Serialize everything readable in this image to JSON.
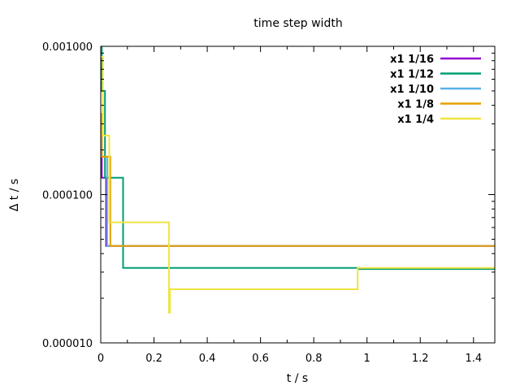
{
  "chart_data": {
    "type": "line",
    "title": "time step width",
    "xlabel": "t / s",
    "ylabel": "Δ t / s",
    "xlim": [
      0,
      1.48
    ],
    "ylim": [
      1e-05,
      0.001
    ],
    "y_scale": "log",
    "grid": false,
    "legend_position": "top-right",
    "x_ticks": [
      0,
      0.2,
      0.4,
      0.6,
      0.8,
      1,
      1.2,
      1.4
    ],
    "x_tick_labels": [
      "0",
      "0.2",
      "0.4",
      "0.6",
      "0.8",
      "1",
      "1.2",
      "1.4"
    ],
    "y_ticks": [
      1e-05,
      0.0001,
      0.001
    ],
    "y_tick_labels": [
      "0.000010",
      "0.000100",
      "0.001000"
    ],
    "series": [
      {
        "name": "x1 1/16",
        "color": "#9400d3",
        "points": [
          [
            0,
            0.00025
          ],
          [
            0.004,
            0.00025
          ],
          [
            0.004,
            0.00013
          ],
          [
            0.02,
            0.00013
          ],
          [
            0.02,
            4.5e-05
          ],
          [
            1.48,
            4.5e-05
          ]
        ]
      },
      {
        "name": "x1 1/12",
        "color": "#009e73",
        "points": [
          [
            0,
            0.001
          ],
          [
            0.004,
            0.001
          ],
          [
            0.004,
            0.0005
          ],
          [
            0.016,
            0.0005
          ],
          [
            0.016,
            0.00013
          ],
          [
            0.084,
            0.00013
          ],
          [
            0.084,
            3.2e-05
          ],
          [
            0.97,
            3.2e-05
          ],
          [
            0.97,
            3.15e-05
          ],
          [
            1.48,
            3.15e-05
          ]
        ]
      },
      {
        "name": "x1 1/10",
        "color": "#56b4e9",
        "points": [
          [
            0,
            0.00035
          ],
          [
            0.004,
            0.00035
          ],
          [
            0.004,
            0.00018
          ],
          [
            0.024,
            0.00018
          ],
          [
            0.024,
            4.5e-05
          ],
          [
            1.48,
            4.5e-05
          ]
        ]
      },
      {
        "name": "x1 1/8",
        "color": "#e69f00",
        "points": [
          [
            0,
            0.00035
          ],
          [
            0.004,
            0.00035
          ],
          [
            0.004,
            0.00018
          ],
          [
            0.036,
            0.00018
          ],
          [
            0.036,
            4.5e-05
          ],
          [
            1.48,
            4.5e-05
          ]
        ]
      },
      {
        "name": "x1 1/4",
        "color": "#f0e442",
        "points": [
          [
            0,
            0.00085
          ],
          [
            0.008,
            0.00085
          ],
          [
            0.008,
            0.00025
          ],
          [
            0.032,
            0.00025
          ],
          [
            0.032,
            6.5e-05
          ],
          [
            0.256,
            6.5e-05
          ],
          [
            0.256,
            1.6e-05
          ],
          [
            0.26,
            1.6e-05
          ],
          [
            0.26,
            2.3e-05
          ],
          [
            0.965,
            2.3e-05
          ],
          [
            0.965,
            3.2e-05
          ],
          [
            1.48,
            3.2e-05
          ]
        ]
      }
    ]
  }
}
